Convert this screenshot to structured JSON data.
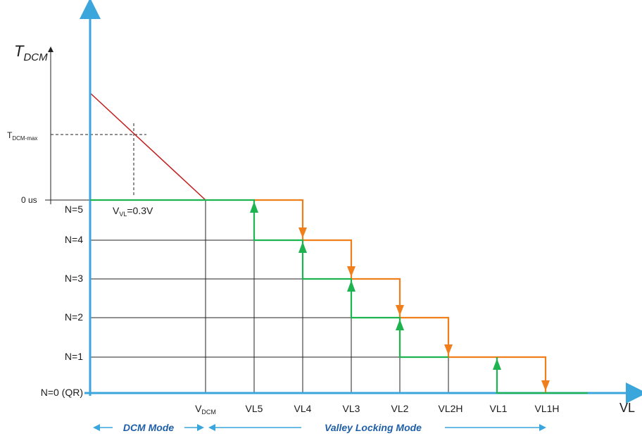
{
  "y_axis_title": {
    "base": "T",
    "sub": "DCM"
  },
  "x_axis_title": "VL",
  "tdcm_max_label": {
    "base": "T",
    "sub": "DCM-max"
  },
  "zero_label": "0 us",
  "vvl_label": {
    "base": "V",
    "sub": "VL",
    "rest": "=0.3V"
  },
  "n_levels": [
    "N=5",
    "N=4",
    "N=3",
    "N=2",
    "N=1",
    "N=0 (QR)"
  ],
  "x_ticks": [
    "V_DCM",
    "VL5",
    "VL4",
    "VL3",
    "VL2",
    "VL2H",
    "VL1",
    "VL1H"
  ],
  "vdcm_label": {
    "base": "V",
    "sub": "DCM"
  },
  "modes": {
    "dcm": "DCM Mode",
    "valley": "Valley Locking Mode"
  },
  "colors": {
    "axis_blue": "#3aa6dc",
    "increasing_green": "#1db34f",
    "decreasing_orange": "#f07f1b",
    "tdcm_red": "#c21d1d",
    "mode_text": "#1f5fa8"
  }
}
